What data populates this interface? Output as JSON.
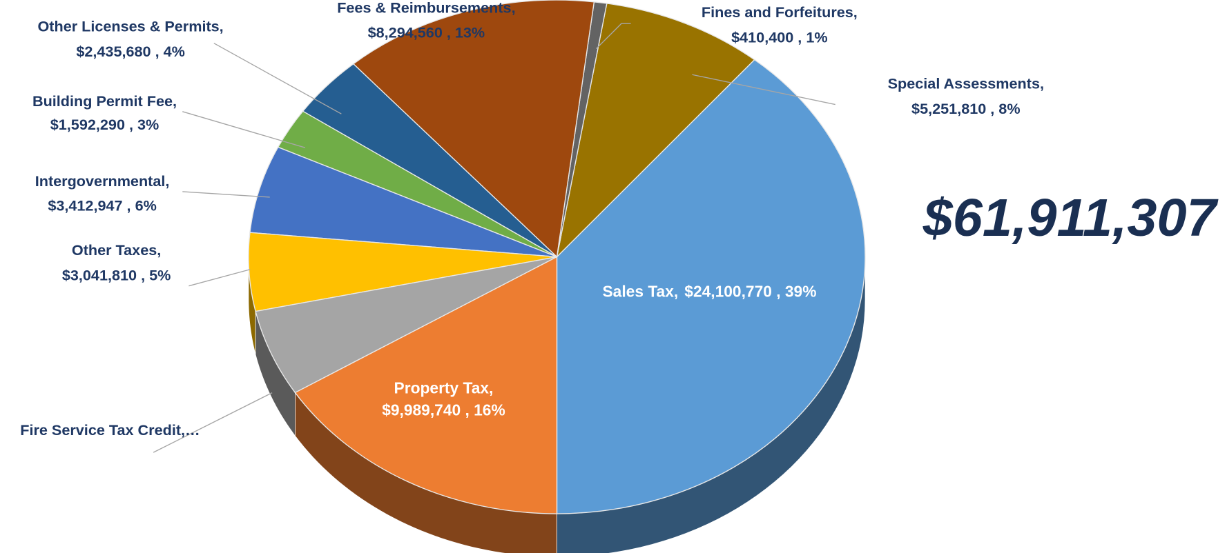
{
  "chart_data": {
    "type": "pie3d",
    "total": "$61,911,307",
    "categories": [
      "Sales Tax,",
      "Special Assessments,",
      "Fines and Forfeitures,",
      "Fees & Reimbursements,",
      "Other Licenses & Permits,",
      "Building Permit Fee,",
      "Intergovernmental,",
      "Other Taxes,",
      "Fire Service Tax Credit,…",
      "Property Tax,"
    ],
    "values": [
      24100770,
      5251810,
      410400,
      8294560,
      2435680,
      1592290,
      3412947,
      3041810,
      3381300,
      9989740
    ],
    "value_labels": [
      "$24,100,770 , 39%",
      "$5,251,810 , 8%",
      "$410,400 , 1%",
      "$8,294,560 , 13%",
      "$2,435,680 , 4%",
      "$1,592,290 , 3%",
      "$3,412,947 , 6%",
      "$3,041,810 , 5%",
      null,
      "$9,989,740 , 16%"
    ],
    "colors": [
      "#5b9bd5",
      "#997300",
      "#636363",
      "#9e480e",
      "#255e91",
      "#70ad47",
      "#4472c4",
      "#ffc000",
      "#a5a5a5",
      "#ed7d31"
    ]
  }
}
